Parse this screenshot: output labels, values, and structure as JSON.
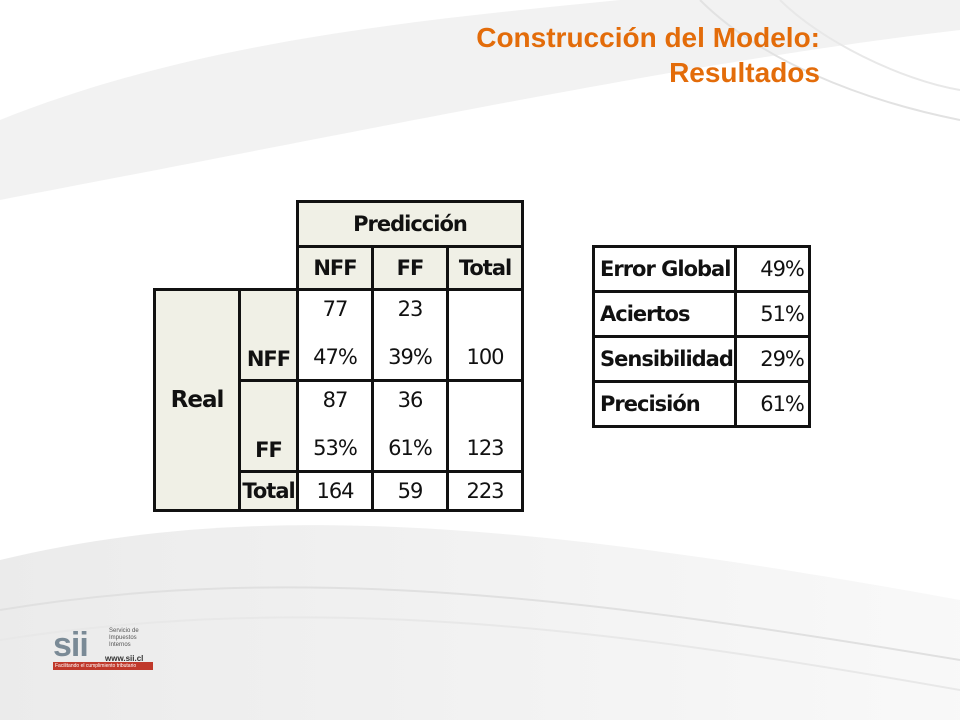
{
  "title": {
    "line1": "Construcción del Modelo:",
    "line2": "Resultados"
  },
  "confusion_matrix": {
    "prediction_header": "Predicción",
    "columns": [
      "NFF",
      "FF",
      "Total"
    ],
    "real_label": "Real",
    "rows": [
      {
        "label": "NFF",
        "counts": [
          "77",
          "23"
        ],
        "percents": [
          "47%",
          "39%"
        ],
        "total": "100"
      },
      {
        "label": "FF",
        "counts": [
          "87",
          "36"
        ],
        "percents": [
          "53%",
          "61%"
        ],
        "total": "123"
      }
    ],
    "total_row": {
      "label": "Total",
      "values": [
        "164",
        "59",
        "223"
      ]
    }
  },
  "metrics": [
    {
      "label": "Error Global",
      "value": "49%"
    },
    {
      "label": "Aciertos",
      "value": "51%"
    },
    {
      "label": "Sensibilidad",
      "value": "29%"
    },
    {
      "label": "Precisión",
      "value": "61%"
    }
  ],
  "logo": {
    "name": "sii",
    "org_text": "Servicio de Impuestos Internos",
    "website": "www.sii.cl",
    "tagline": "Facilitando el cumplimiento tributario"
  },
  "colors": {
    "title": "#e36c0a",
    "header_fill": "#f0f0e6",
    "logo_red": "#c0392b"
  }
}
